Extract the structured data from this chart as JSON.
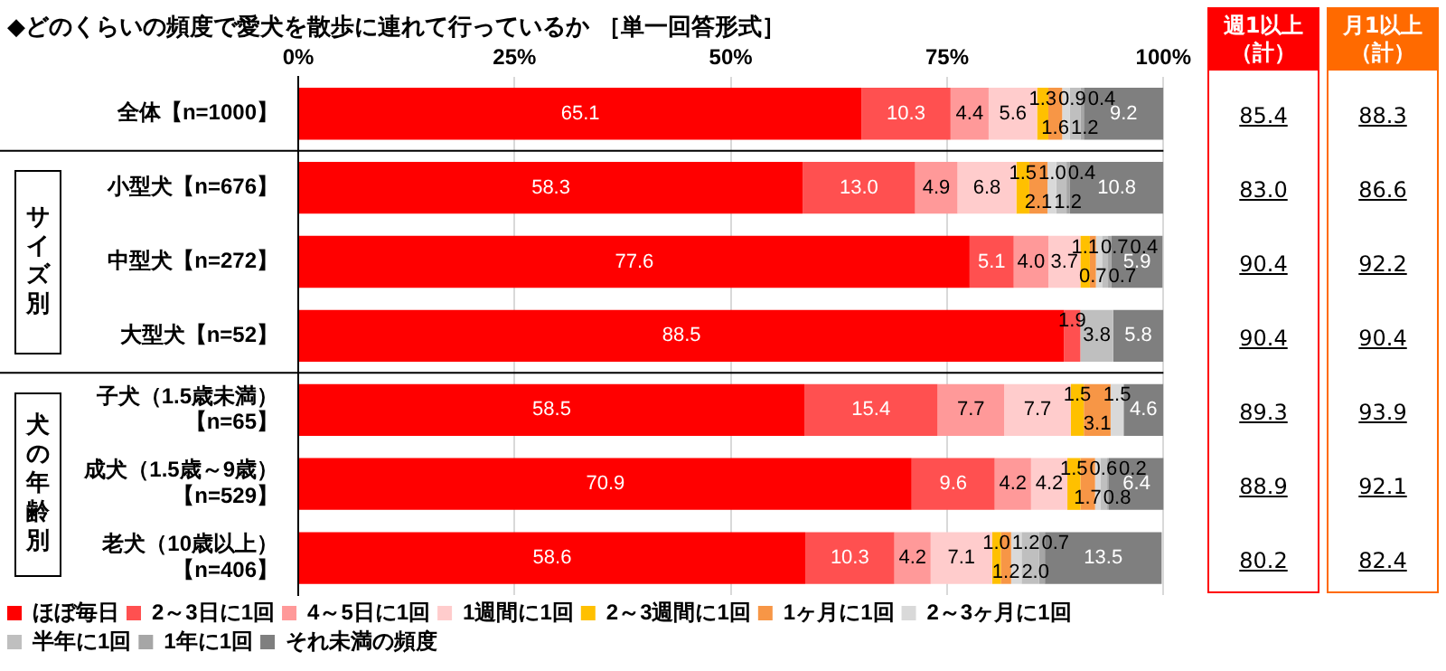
{
  "chart_data": {
    "type": "bar",
    "orientation": "horizontal",
    "stacked": true,
    "title": "◆どのくらいの頻度で愛犬を散歩に連れて行っているか ［単一回答形式］",
    "categories": [
      "全体【n=1000】",
      "小型犬【n=676】",
      "中型犬【n=272】",
      "大型犬【n=52】",
      "子犬（1.5歳未満）【n=65】",
      "成犬（1.5歳～9歳）【n=529】",
      "老犬（10歳以上）【n=406】"
    ],
    "series": [
      {
        "name": "ほぼ毎日",
        "color": "#ff0000",
        "values": [
          65.1,
          58.3,
          77.6,
          88.5,
          58.5,
          70.9,
          58.6
        ],
        "value_labels": [
          "65.1",
          "58.3",
          "77.6",
          "88.5",
          "58.5",
          "70.9",
          "58.6"
        ]
      },
      {
        "name": "2～3日に1回",
        "color": "#ff5050",
        "values": [
          10.3,
          13.0,
          5.1,
          1.9,
          15.4,
          9.6,
          10.3
        ],
        "value_labels": [
          "10.3",
          "13.0",
          "5.1",
          "1.9",
          "15.4",
          "9.6",
          "10.3"
        ]
      },
      {
        "name": "4～5日に1回",
        "color": "#ff9999",
        "values": [
          4.4,
          4.9,
          4.0,
          null,
          7.7,
          4.2,
          4.2
        ],
        "value_labels": [
          "4.4",
          "4.9",
          "4.0",
          null,
          "7.7",
          "4.2",
          "4.2"
        ]
      },
      {
        "name": "1週間に1回",
        "color": "#ffcccc",
        "values": [
          5.6,
          6.8,
          3.7,
          null,
          7.7,
          4.2,
          7.1
        ],
        "value_labels": [
          "5.6",
          "6.8",
          "3.7",
          null,
          "7.7",
          "4.2",
          "7.1"
        ]
      },
      {
        "name": "2～3週間に1回",
        "color": "#ffc000",
        "values": [
          1.3,
          1.5,
          1.1,
          null,
          1.5,
          1.5,
          1.0
        ],
        "value_labels": [
          "1.3",
          "1.5",
          "1.1",
          null,
          "1.5",
          "1.5",
          "1.0"
        ]
      },
      {
        "name": "1ヶ月に1回",
        "color": "#f79646",
        "values": [
          1.6,
          2.1,
          0.7,
          null,
          3.1,
          1.7,
          1.2
        ],
        "value_labels": [
          "1.6",
          "2.1",
          "0.7",
          null,
          "3.1",
          "1.7",
          "1.2"
        ]
      },
      {
        "name": "2～3ヶ月に1回",
        "color": "#d9d9d9",
        "values": [
          0.9,
          1.0,
          0.7,
          null,
          1.5,
          0.6,
          1.2
        ],
        "value_labels": [
          "0.9",
          "1.0",
          "0.7",
          null,
          "1.5",
          "0.6",
          "1.2"
        ]
      },
      {
        "name": "半年に1回",
        "color": "#bfbfbf",
        "values": [
          1.2,
          1.2,
          0.7,
          3.8,
          null,
          0.8,
          2.0
        ],
        "value_labels": [
          "1.2",
          "1.2",
          "0.7",
          "3.8",
          null,
          "0.8",
          "2.0"
        ]
      },
      {
        "name": "1年に1回",
        "color": "#a6a6a6",
        "values": [
          0.4,
          0.4,
          0.4,
          null,
          null,
          0.2,
          0.7
        ],
        "value_labels": [
          "0.4",
          "0.4",
          "0.4",
          null,
          null,
          "0.2",
          "0.7"
        ]
      },
      {
        "name": "それ未満の頻度",
        "color": "#7f7f7f",
        "values": [
          9.2,
          10.8,
          5.9,
          5.8,
          4.6,
          6.4,
          13.5
        ],
        "value_labels": [
          "9.2",
          "10.8",
          "5.9",
          "5.8",
          "4.6",
          "6.4",
          "13.5"
        ]
      }
    ],
    "xlim": [
      0,
      100
    ],
    "xticks": [
      {
        "value": 0,
        "label": "0%"
      },
      {
        "value": 25,
        "label": "25%"
      },
      {
        "value": 50,
        "label": "50%"
      },
      {
        "value": 75,
        "label": "75%"
      },
      {
        "value": 100,
        "label": "100%"
      }
    ],
    "grid": "x",
    "legend": "bottom",
    "annotations": [
      "サイズ別",
      "犬の年齢別",
      "週1以上（計）",
      "85.4",
      "83.0",
      "90.4",
      "90.4",
      "89.3",
      "88.9",
      "80.2",
      "月1以上（計）",
      "88.3",
      "86.6",
      "92.2",
      "90.4",
      "93.9",
      "92.1",
      "82.4"
    ]
  }
}
